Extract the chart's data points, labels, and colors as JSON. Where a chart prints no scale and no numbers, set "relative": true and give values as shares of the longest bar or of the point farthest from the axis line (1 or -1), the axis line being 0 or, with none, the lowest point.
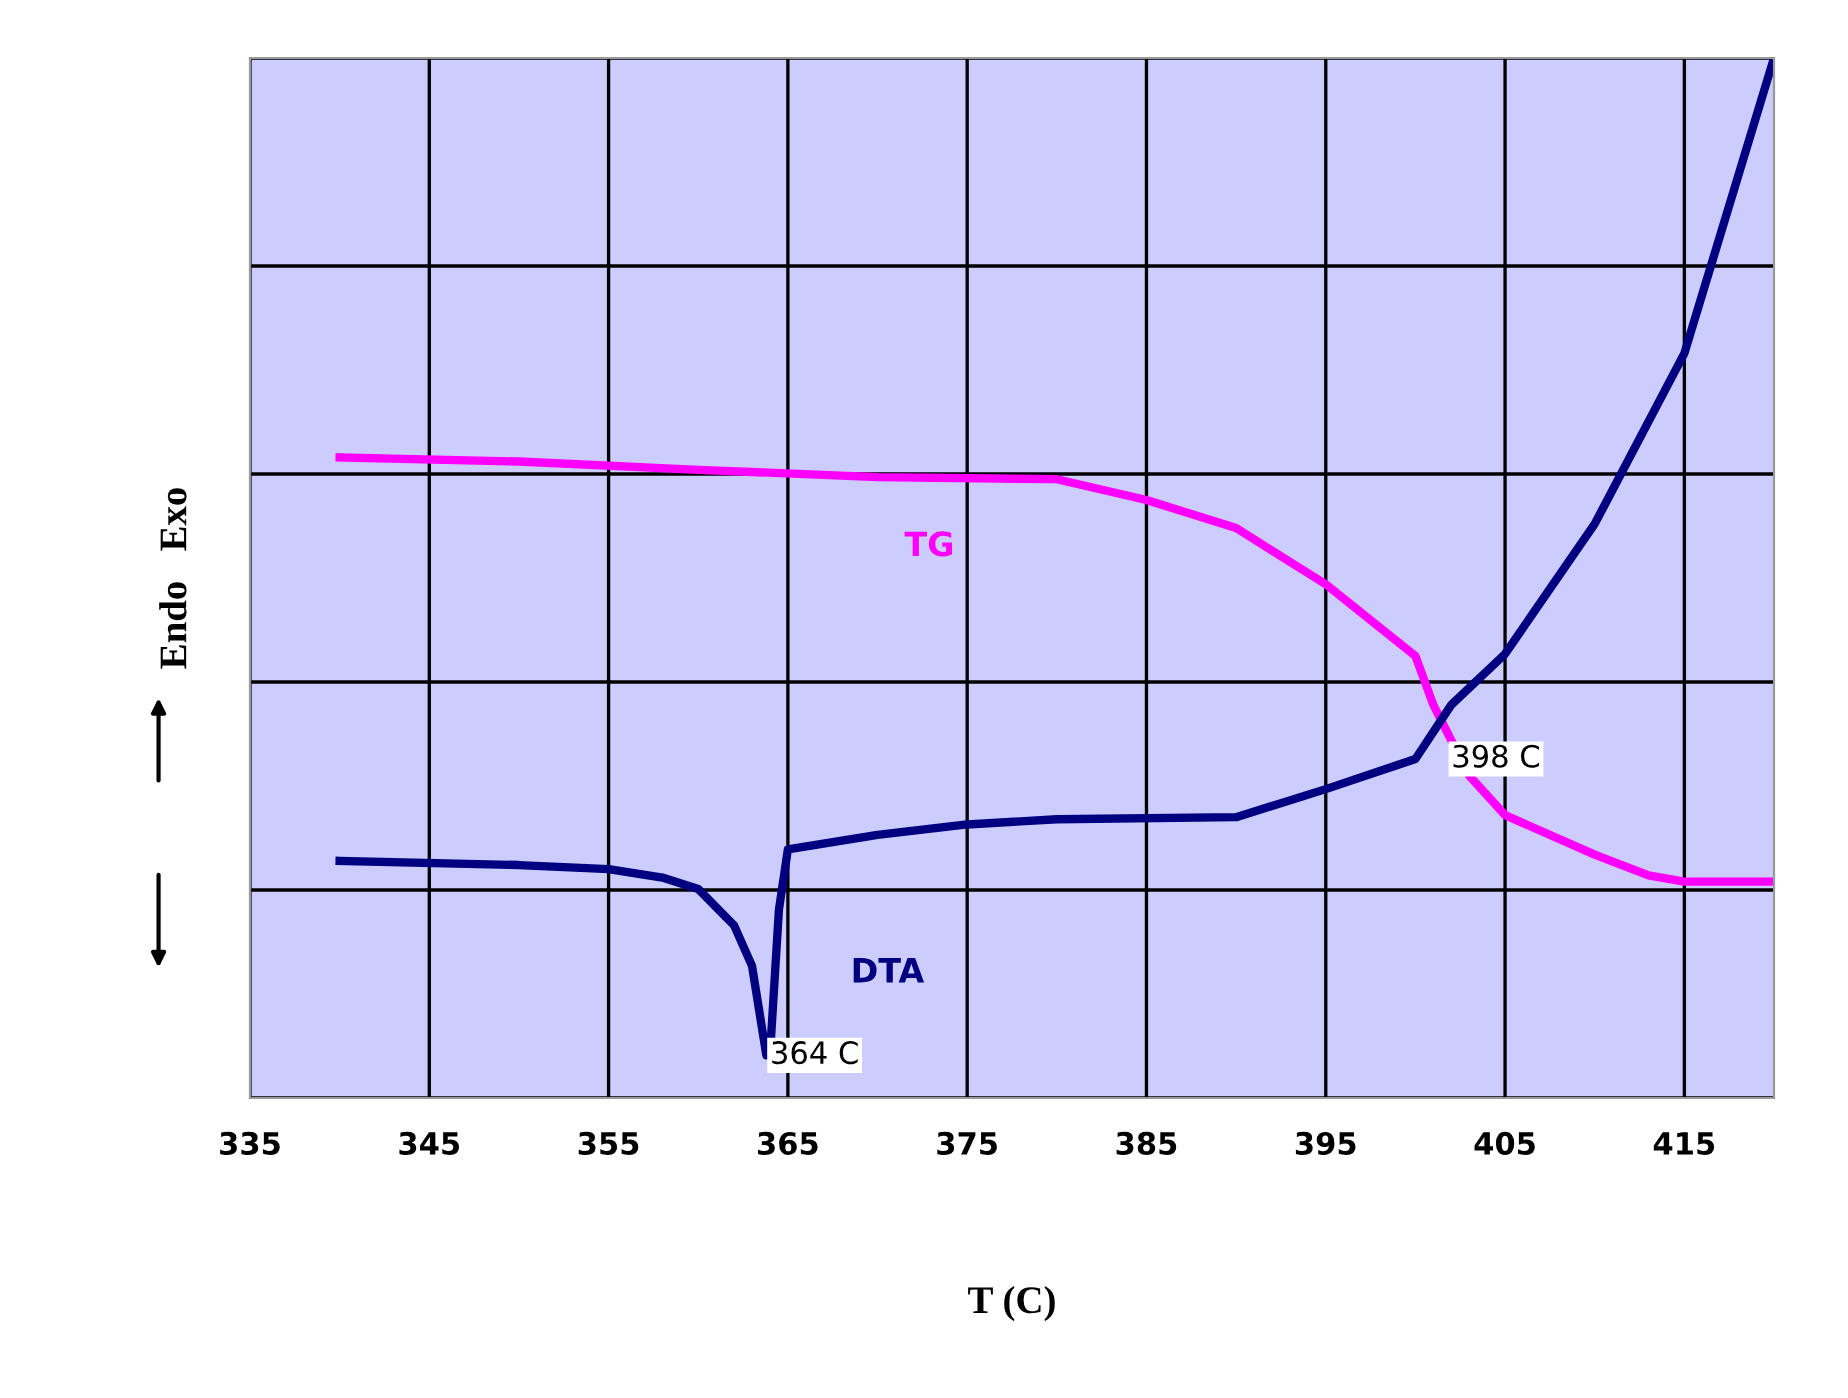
{
  "chart_data": {
    "type": "line",
    "relative": true,
    "xlabel": "T (C)",
    "ylabel": "Endo   Exo",
    "xlim": [
      335,
      420
    ],
    "xticks": [
      335,
      345,
      355,
      365,
      375,
      385,
      395,
      405,
      415
    ],
    "grid": true,
    "legend": false,
    "marker": "none",
    "line_style": "solid",
    "series": [
      {
        "name": "TG",
        "color": "#ff00ff",
        "x": [
          340,
          350,
          360,
          370,
          380,
          385,
          390,
          395,
          400,
          401,
          403,
          405,
          410,
          413,
          415,
          420
        ],
        "values": [
          0.616,
          0.612,
          0.604,
          0.597,
          0.595,
          0.575,
          0.548,
          0.494,
          0.425,
          0.378,
          0.31,
          0.272,
          0.234,
          0.214,
          0.208,
          0.208
        ]
      },
      {
        "name": "DTA",
        "color": "#000080",
        "x": [
          340,
          350,
          355,
          358,
          360,
          362,
          363,
          363.8,
          364,
          364.5,
          365,
          370,
          375,
          380,
          390,
          395,
          400,
          402,
          405,
          410,
          415,
          420
        ],
        "values": [
          0.228,
          0.224,
          0.22,
          0.212,
          0.201,
          0.166,
          0.127,
          0.041,
          0.041,
          0.181,
          0.239,
          0.253,
          0.263,
          0.268,
          0.27,
          0.297,
          0.326,
          0.378,
          0.427,
          0.552,
          0.716,
          1
        ]
      }
    ],
    "annotations": [
      {
        "text": "364 C",
        "x": 364,
        "y": 0.041
      },
      {
        "text": "398 C",
        "x": 402,
        "y": 0.326
      }
    ]
  }
}
